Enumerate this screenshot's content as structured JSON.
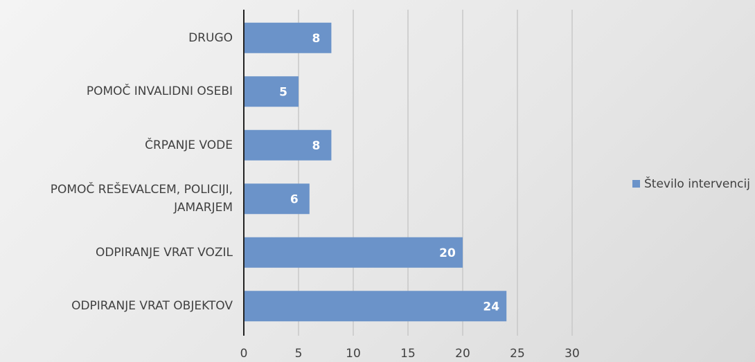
{
  "chart_data": {
    "type": "bar",
    "orientation": "horizontal",
    "categories": [
      "DRUGO",
      "POMOČ INVALIDNI OSEBI",
      "ČRPANJE VODE",
      "POMOČ REŠEVALCEM, POLICIJI, JAMARJEM",
      "ODPIRANJE VRAT VOZIL",
      "ODPIRANJE VRAT OBJEKTOV"
    ],
    "series": [
      {
        "name": "Število intervencij",
        "color": "#6b93c9",
        "values": [
          8,
          5,
          8,
          6,
          20,
          24
        ]
      }
    ],
    "xlim": [
      0,
      30
    ],
    "xticks": [
      0,
      5,
      10,
      15,
      20,
      25,
      30
    ],
    "grid": true,
    "legend": "right"
  }
}
